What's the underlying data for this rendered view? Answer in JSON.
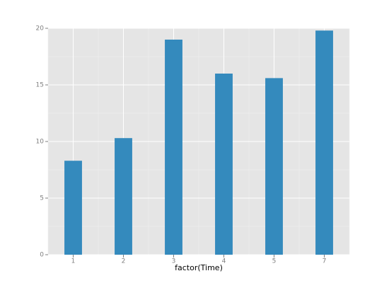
{
  "chart_data": {
    "type": "bar",
    "x_label": "factor(Time)",
    "categories": [
      "1",
      "2",
      "3",
      "4",
      "5",
      "7"
    ],
    "values": [
      8.3,
      10.3,
      19.0,
      16.0,
      15.6,
      19.8
    ],
    "color": "#348abd",
    "ylim": [
      0,
      20
    ],
    "yticks": [
      0,
      5,
      10,
      15,
      20
    ],
    "grid": true
  }
}
